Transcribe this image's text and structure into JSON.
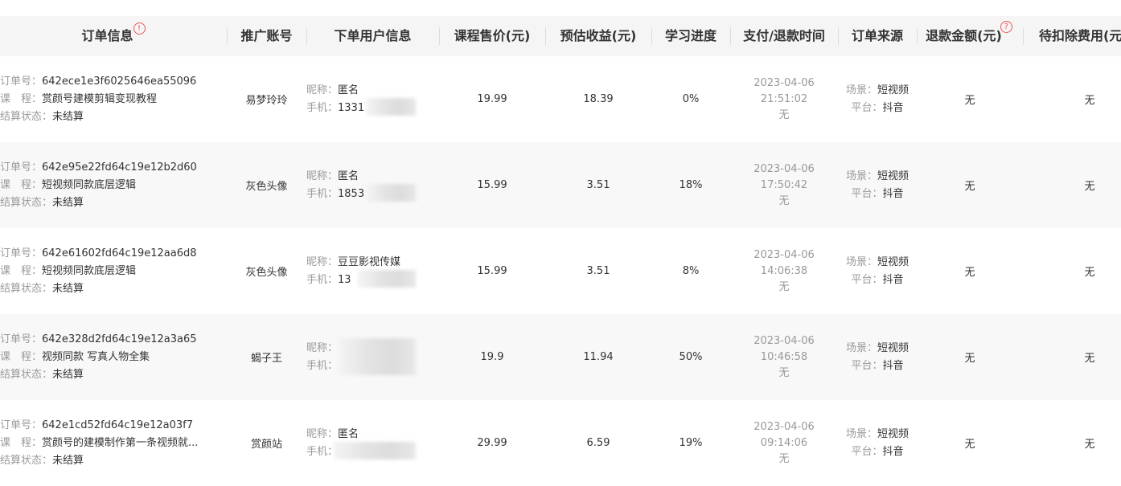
{
  "columns": [
    "订单信息",
    "推广账号",
    "下单用户信息",
    "课程售价(元)",
    "预估收益(元)",
    "学习进度",
    "支付/退款时间",
    "订单来源",
    "退款金额(元)",
    "待扣除费用(元)"
  ],
  "icons": {
    "order_info": "alert-circle-icon",
    "refund": "question-circle-icon"
  },
  "labels": {
    "order_no": "订单号：",
    "course": "课　程：",
    "settle": "结算状态：",
    "nick": "昵称：",
    "phone": "手机：",
    "scene": "场景：",
    "platform": "平台："
  },
  "rows": [
    {
      "order_no": "642ece1e3f6025646ea55096",
      "course": "赏颜号建模剪辑变现教程",
      "settle": "未结算",
      "account": "易梦玲玲",
      "nick": "匿名",
      "phone": "1331",
      "price": "19.99",
      "income": "18.39",
      "progress": "0%",
      "date": "2023-04-06",
      "time": "21:51:02",
      "refund_time": "无",
      "scene": "短视频",
      "platform": "抖音",
      "refund": "无",
      "deduct": "无"
    },
    {
      "order_no": "642e95e22fd64c19e12b2d60",
      "course": "短视频同款底层逻辑",
      "settle": "未结算",
      "account": "灰色头像",
      "nick": "匿名",
      "phone": "1853",
      "price": "15.99",
      "income": "3.51",
      "progress": "18%",
      "date": "2023-04-06",
      "time": "17:50:42",
      "refund_time": "无",
      "scene": "短视频",
      "platform": "抖音",
      "refund": "无",
      "deduct": "无"
    },
    {
      "order_no": "642e61602fd64c19e12aa6d8",
      "course": "短视频同款底层逻辑",
      "settle": "未结算",
      "account": "灰色头像",
      "nick": "豆豆影视传媒",
      "phone": "13",
      "price": "15.99",
      "income": "3.51",
      "progress": "8%",
      "date": "2023-04-06",
      "time": "14:06:38",
      "refund_time": "无",
      "scene": "短视频",
      "platform": "抖音",
      "refund": "无",
      "deduct": "无"
    },
    {
      "order_no": "642e328d2fd64c19e12a3a65",
      "course": "视频同款 写真人物全集",
      "settle": "未结算",
      "account": "蝎子王",
      "nick": "",
      "phone": "",
      "price": "19.9",
      "income": "11.94",
      "progress": "50%",
      "date": "2023-04-06",
      "time": "10:46:58",
      "refund_time": "无",
      "scene": "短视频",
      "platform": "抖音",
      "refund": "无",
      "deduct": "无"
    },
    {
      "order_no": "642e1cd52fd64c19e12a03f7",
      "course": "赏颜号的建模制作第一条视频就...",
      "settle": "未结算",
      "account": "赏颜站",
      "nick": "匿名",
      "phone": "",
      "price": "29.99",
      "income": "6.59",
      "progress": "19%",
      "date": "2023-04-06",
      "time": "09:14:06",
      "refund_time": "无",
      "scene": "短视频",
      "platform": "抖音",
      "refund": "无",
      "deduct": "无"
    }
  ]
}
